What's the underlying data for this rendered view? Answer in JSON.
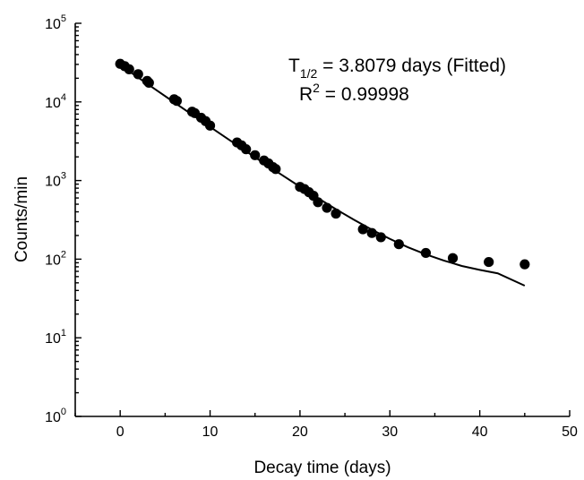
{
  "chart_data": {
    "type": "scatter",
    "title": "",
    "xlabel": "Decay time (days)",
    "ylabel": "Counts/min",
    "xlim": [
      -5,
      50
    ],
    "ylim": [
      1,
      100000
    ],
    "y_scale": "log",
    "x_ticks": [
      0,
      10,
      20,
      30,
      40,
      50
    ],
    "x_tick_labels": [
      "0",
      "10",
      "20",
      "30",
      "40",
      "50"
    ],
    "y_ticks": [
      {
        "value": 1,
        "base": "10",
        "exp": "0"
      },
      {
        "value": 10,
        "base": "10",
        "exp": "1"
      },
      {
        "value": 100,
        "base": "10",
        "exp": "2"
      },
      {
        "value": 1000,
        "base": "10",
        "exp": "3"
      },
      {
        "value": 10000,
        "base": "10",
        "exp": "4"
      },
      {
        "value": 100000,
        "base": "10",
        "exp": "5"
      }
    ],
    "grid": false,
    "legend": "none",
    "annotations": {
      "half_life_prefix": "T",
      "half_life_sub": "1/2",
      "half_life_rest": " = 3.8079 days (Fitted)",
      "r2_prefix": "R",
      "r2_sup": "2",
      "r2_rest": " = 0.99998"
    },
    "points": [
      {
        "x": 0,
        "y": 30500
      },
      {
        "x": 0.5,
        "y": 28500
      },
      {
        "x": 1,
        "y": 26000
      },
      {
        "x": 2,
        "y": 22500
      },
      {
        "x": 3,
        "y": 18500
      },
      {
        "x": 3.2,
        "y": 17500
      },
      {
        "x": 6,
        "y": 10800
      },
      {
        "x": 6.3,
        "y": 10300
      },
      {
        "x": 8,
        "y": 7500
      },
      {
        "x": 8.3,
        "y": 7200
      },
      {
        "x": 9,
        "y": 6300
      },
      {
        "x": 9.5,
        "y": 5700
      },
      {
        "x": 10,
        "y": 5000
      },
      {
        "x": 13,
        "y": 3050
      },
      {
        "x": 13.5,
        "y": 2800
      },
      {
        "x": 14,
        "y": 2500
      },
      {
        "x": 15,
        "y": 2100
      },
      {
        "x": 16,
        "y": 1800
      },
      {
        "x": 16.5,
        "y": 1650
      },
      {
        "x": 17,
        "y": 1480
      },
      {
        "x": 17.3,
        "y": 1400
      },
      {
        "x": 20,
        "y": 830
      },
      {
        "x": 20.5,
        "y": 780
      },
      {
        "x": 21,
        "y": 710
      },
      {
        "x": 21.5,
        "y": 640
      },
      {
        "x": 22,
        "y": 530
      },
      {
        "x": 23,
        "y": 450
      },
      {
        "x": 24,
        "y": 380
      },
      {
        "x": 27,
        "y": 240
      },
      {
        "x": 28,
        "y": 215
      },
      {
        "x": 29,
        "y": 190
      },
      {
        "x": 31,
        "y": 155
      },
      {
        "x": 34,
        "y": 120
      },
      {
        "x": 37,
        "y": 103
      },
      {
        "x": 41,
        "y": 92
      },
      {
        "x": 45,
        "y": 86
      }
    ],
    "fit": {
      "model": "A*exp(-ln2*t/T)+B",
      "x": [
        0,
        2,
        4,
        6,
        8,
        10,
        12,
        14,
        16,
        18,
        20,
        22,
        24,
        26,
        28,
        30,
        32,
        34,
        36,
        38,
        40,
        42,
        45
      ],
      "y": [
        29500,
        20450,
        14200,
        9880,
        6880,
        4810,
        3370,
        2360,
        1660,
        1175,
        835,
        598,
        432,
        317,
        237,
        181,
        142,
        115,
        96,
        82,
        73,
        66,
        46
      ]
    }
  }
}
